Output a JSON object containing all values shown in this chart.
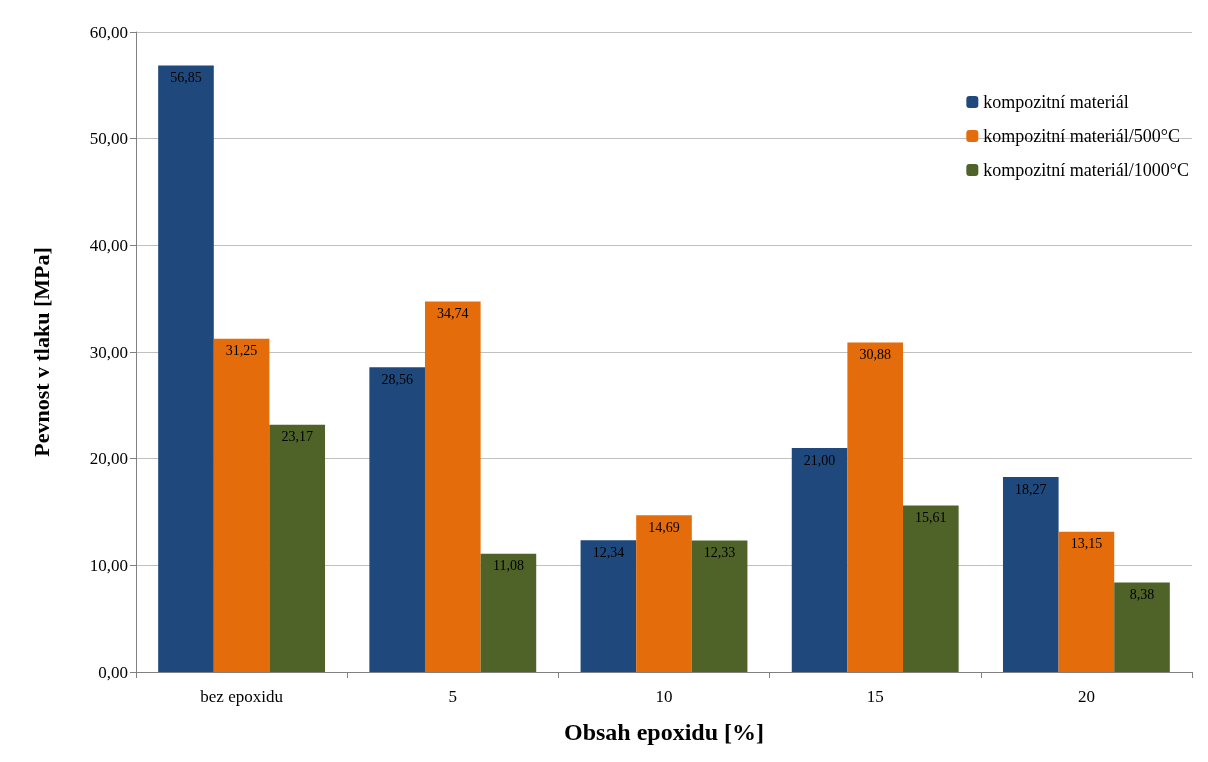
{
  "chart_data": {
    "type": "bar",
    "xlabel": "Obsah epoxidu [%]",
    "ylabel": "Pevnost v tlaku [MPa]",
    "categories": [
      "bez epoxidu",
      "5",
      "10",
      "15",
      "20"
    ],
    "series": [
      {
        "name": "kompozitní materiál",
        "color": "#1f497d",
        "values": [
          56.85,
          28.56,
          12.34,
          21.0,
          18.27
        ],
        "value_labels": [
          "56,85",
          "28,56",
          "12,34",
          "21,00",
          "18,27"
        ]
      },
      {
        "name": "kompozitní materiál/500°C",
        "color": "#e46c0a",
        "values": [
          31.25,
          34.74,
          14.69,
          30.88,
          13.15
        ],
        "value_labels": [
          "31,25",
          "34,74",
          "14,69",
          "30,88",
          "13,15"
        ]
      },
      {
        "name": "kompozitní materiál/1000°C",
        "color": "#4f6228",
        "values": [
          23.17,
          11.08,
          12.33,
          15.61,
          8.38
        ],
        "value_labels": [
          "23,17",
          "11,08",
          "12,33",
          "15,61",
          "8,38"
        ]
      }
    ],
    "ylim": [
      0,
      60
    ],
    "yticks": [
      {
        "value": 0,
        "label": "0,00"
      },
      {
        "value": 10,
        "label": "10,00"
      },
      {
        "value": 20,
        "label": "20,00"
      },
      {
        "value": 30,
        "label": "30,00"
      },
      {
        "value": 40,
        "label": "40,00"
      },
      {
        "value": 50,
        "label": "50,00"
      },
      {
        "value": 60,
        "label": "60,00"
      }
    ],
    "grid": "y",
    "legend": "top right"
  }
}
